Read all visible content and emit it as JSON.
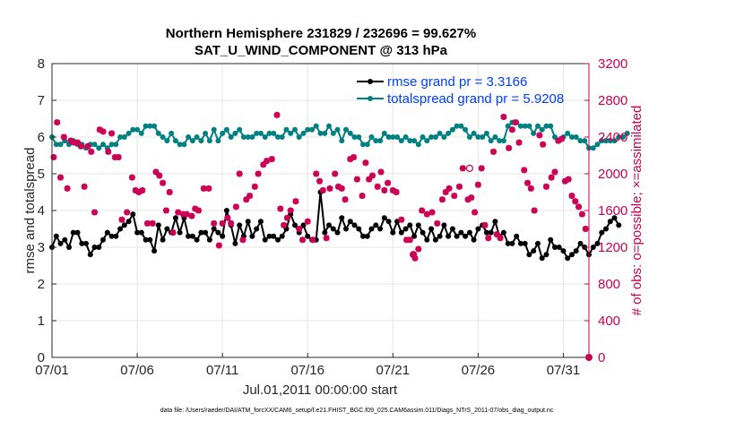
{
  "chart_data": {
    "type": "line",
    "title_line1": "Northern Hemisphere 231829 / 232696 = 99.627%",
    "title_line2": "SAT_U_WIND_COMPONENT @ 313 hPa",
    "xlabel": "Jul.01,2011 00:00:00 start",
    "ylabel_left": "rmse and totalspread",
    "ylabel_right": "# of obs: o=possible; ×=assimilated",
    "footnote": "data file: /Users/raeder/DAI/ATM_forcXX/CAM6_setup/f.e21.FHIST_BGC.f09_025.CAM6assim.011/Diags_NTrS_2011-07/obs_diag_output.nc",
    "xlim": [
      0,
      31.5
    ],
    "x_ticks": [
      0,
      5,
      10,
      15,
      20,
      25,
      30
    ],
    "x_tick_labels": [
      "07/01",
      "07/06",
      "07/11",
      "07/16",
      "07/21",
      "07/26",
      "07/31"
    ],
    "ylim_left": [
      0,
      8
    ],
    "y_ticks_left": [
      "0",
      "1",
      "2",
      "3",
      "4",
      "5",
      "6",
      "7",
      "8"
    ],
    "ylim_right": [
      0,
      3200
    ],
    "y_ticks_right": [
      "0",
      "400",
      "800",
      "1200",
      "1600",
      "2000",
      "2400",
      "2800",
      "3200"
    ],
    "colors": {
      "rmse": "#000000",
      "spread": "#008080",
      "obs": "#cc0055",
      "legend_text": "#0040ff"
    },
    "legend": [
      {
        "name": "rmse grand pr = 3.3166"
      },
      {
        "name": "totalspread grand pr = 5.9208"
      }
    ],
    "series": [
      {
        "name": "rmse",
        "values": [
          3.0,
          3.3,
          3.1,
          3.2,
          3.0,
          3.4,
          3.4,
          3.1,
          3.1,
          2.8,
          3.0,
          3.0,
          3.2,
          3.4,
          3.3,
          3.3,
          3.5,
          3.6,
          3.7,
          3.9,
          3.4,
          3.4,
          3.2,
          3.2,
          2.9,
          3.6,
          3.2,
          3.5,
          3.4,
          3.8,
          3.4,
          3.8,
          3.3,
          3.3,
          3.2,
          3.4,
          3.4,
          3.2,
          3.5,
          3.4,
          3.3,
          4.0,
          3.6,
          3.1,
          3.6,
          3.3,
          3.7,
          3.3,
          3.5,
          3.7,
          3.2,
          3.3,
          3.3,
          3.2,
          3.3,
          3.5,
          3.9,
          3.6,
          3.4,
          3.6,
          3.3,
          3.2,
          3.2,
          4.5,
          3.4,
          3.6,
          3.5,
          3.4,
          3.8,
          3.5,
          3.7,
          3.6,
          3.5,
          3.3,
          3.3,
          3.5,
          3.6,
          3.5,
          3.8,
          3.7,
          3.4,
          3.7,
          3.4,
          3.5,
          3.6,
          3.3,
          3.6,
          3.4,
          3.2,
          3.5,
          3.2,
          3.3,
          3.6,
          3.3,
          3.5,
          3.3,
          3.4,
          3.3,
          3.4,
          3.2,
          3.5,
          3.6,
          3.4,
          3.4,
          3.7,
          3.3,
          3.4,
          3.1,
          3.1,
          3.3,
          3.1,
          3.1,
          2.8,
          2.9,
          3.1,
          2.7,
          2.8,
          3.2,
          3.0,
          3.0,
          2.9,
          2.7,
          2.8,
          2.9,
          3.1,
          3.0,
          2.8,
          3.0,
          3.1,
          3.4,
          3.5,
          3.7,
          3.8,
          3.6
        ],
        "x_step": 0.25
      },
      {
        "name": "totalspread",
        "values": [
          6.0,
          5.8,
          5.8,
          5.9,
          5.8,
          5.9,
          5.8,
          5.8,
          5.7,
          5.8,
          5.8,
          5.7,
          5.8,
          5.7,
          5.8,
          5.8,
          6.0,
          6.0,
          6.1,
          6.2,
          6.2,
          6.1,
          6.3,
          6.3,
          6.3,
          6.1,
          6.0,
          5.9,
          6.1,
          5.9,
          5.8,
          5.8,
          6.0,
          5.9,
          6.0,
          5.9,
          6.1,
          5.9,
          6.2,
          5.9,
          6.1,
          6.2,
          6.0,
          6.1,
          6.2,
          6.0,
          6.0,
          6.0,
          6.1,
          6.1,
          6.0,
          6.1,
          6.1,
          6.0,
          6.0,
          6.2,
          6.1,
          6.2,
          6.0,
          6.1,
          6.2,
          6.2,
          6.3,
          6.1,
          6.1,
          6.3,
          6.1,
          6.2,
          5.9,
          6.2,
          6.1,
          6.0,
          6.0,
          5.8,
          5.8,
          6.0,
          5.9,
          5.9,
          6.1,
          6.0,
          6.0,
          6.0,
          5.9,
          6.0,
          5.9,
          5.9,
          5.8,
          6.0,
          5.9,
          6.0,
          6.0,
          6.1,
          6.0,
          6.1,
          6.2,
          6.3,
          6.3,
          6.2,
          6.0,
          6.1,
          6.0,
          6.0,
          6.1,
          5.9,
          6.0,
          5.9,
          5.9,
          6.3,
          6.4,
          6.4,
          6.3,
          6.3,
          6.3,
          6.1,
          6.3,
          6.2,
          6.3,
          6.3,
          6.0,
          5.9,
          6.0,
          6.1,
          6.0,
          6.0,
          5.9,
          5.9,
          5.7,
          5.7,
          5.8,
          5.9,
          5.9,
          5.9,
          5.9,
          6.0,
          6.0,
          6.1
        ],
        "x_step": 0.25
      },
      {
        "name": "obs_assimilated",
        "points": [
          [
            0.1,
            2180
          ],
          [
            0.3,
            2560
          ],
          [
            0.5,
            1960
          ],
          [
            0.7,
            2400
          ],
          [
            0.9,
            1840
          ],
          [
            1.1,
            2360
          ],
          [
            1.3,
            2340
          ],
          [
            1.5,
            2340
          ],
          [
            1.7,
            2300
          ],
          [
            1.9,
            1860
          ],
          [
            2.1,
            2300
          ],
          [
            2.3,
            2240
          ],
          [
            2.5,
            1580
          ],
          [
            2.8,
            2480
          ],
          [
            3.0,
            2460
          ],
          [
            3.3,
            2240
          ],
          [
            3.5,
            2440
          ],
          [
            3.7,
            2180
          ],
          [
            3.9,
            2180
          ],
          [
            4.1,
            1500
          ],
          [
            4.4,
            1580
          ],
          [
            4.7,
            1960
          ],
          [
            4.9,
            1820
          ],
          [
            5.1,
            1800
          ],
          [
            5.3,
            1820
          ],
          [
            5.6,
            1460
          ],
          [
            5.9,
            1460
          ],
          [
            6.1,
            2020
          ],
          [
            6.3,
            1980
          ],
          [
            6.5,
            1900
          ],
          [
            6.7,
            1600
          ],
          [
            6.9,
            1800
          ],
          [
            7.1,
            1360
          ],
          [
            7.4,
            1580
          ],
          [
            7.7,
            1560
          ],
          [
            7.9,
            1560
          ],
          [
            8.2,
            1540
          ],
          [
            8.4,
            1620
          ],
          [
            8.6,
            1600
          ],
          [
            8.9,
            1840
          ],
          [
            9.2,
            1840
          ],
          [
            9.5,
            1460
          ],
          [
            9.8,
            1220
          ],
          [
            10.0,
            1460
          ],
          [
            10.3,
            1520
          ],
          [
            10.5,
            1460
          ],
          [
            10.8,
            1640
          ],
          [
            11.0,
            2000
          ],
          [
            11.2,
            1280
          ],
          [
            11.4,
            1720
          ],
          [
            11.6,
            1760
          ],
          [
            11.9,
            1860
          ],
          [
            12.1,
            2000
          ],
          [
            12.4,
            2100
          ],
          [
            12.6,
            2140
          ],
          [
            12.9,
            2160
          ],
          [
            13.2,
            2640
          ],
          [
            13.4,
            1620
          ],
          [
            13.6,
            1440
          ],
          [
            13.8,
            1520
          ],
          [
            14.0,
            1600
          ],
          [
            14.3,
            1700
          ],
          [
            14.5,
            1400
          ],
          [
            14.7,
            1280
          ],
          [
            15.0,
            1480
          ],
          [
            15.3,
            1280
          ],
          [
            15.5,
            2000
          ],
          [
            15.7,
            1920
          ],
          [
            15.9,
            1820
          ],
          [
            16.1,
            1300
          ],
          [
            16.3,
            1840
          ],
          [
            16.6,
            2000
          ],
          [
            16.8,
            1860
          ],
          [
            17.0,
            1840
          ],
          [
            17.2,
            1720
          ],
          [
            17.5,
            2160
          ],
          [
            17.7,
            2180
          ],
          [
            17.9,
            1940
          ],
          [
            18.2,
            1760
          ],
          [
            18.4,
            2120
          ],
          [
            18.6,
            1940
          ],
          [
            18.8,
            1980
          ],
          [
            19.1,
            1860
          ],
          [
            19.3,
            2020
          ],
          [
            19.5,
            1820
          ],
          [
            19.7,
            1900
          ],
          [
            20.0,
            1820
          ],
          [
            20.2,
            1800
          ],
          [
            20.5,
            1500
          ],
          [
            20.8,
            1280
          ],
          [
            21.0,
            1280
          ],
          [
            21.2,
            1120
          ],
          [
            21.3,
            1080
          ],
          [
            21.5,
            1180
          ],
          [
            21.7,
            1600
          ],
          [
            22.0,
            1560
          ],
          [
            22.3,
            1580
          ],
          [
            22.6,
            1460
          ],
          [
            22.9,
            1720
          ],
          [
            23.1,
            1800
          ],
          [
            23.3,
            1840
          ],
          [
            23.6,
            1760
          ],
          [
            23.9,
            1860
          ],
          [
            24.1,
            2060
          ],
          [
            24.4,
            1720
          ],
          [
            24.6,
            1740
          ],
          [
            24.8,
            1580
          ],
          [
            25.0,
            1880
          ],
          [
            25.2,
            2060
          ],
          [
            25.4,
            1440
          ],
          [
            25.6,
            1300
          ],
          [
            25.9,
            2240
          ],
          [
            26.1,
            1340
          ],
          [
            26.3,
            1300
          ],
          [
            26.5,
            2620
          ],
          [
            26.8,
            2280
          ],
          [
            27.0,
            2480
          ],
          [
            27.2,
            2560
          ],
          [
            27.4,
            2340
          ],
          [
            27.7,
            2040
          ],
          [
            27.9,
            1900
          ],
          [
            28.1,
            1840
          ],
          [
            28.3,
            1600
          ],
          [
            28.6,
            2420
          ],
          [
            28.8,
            2320
          ],
          [
            29.0,
            1860
          ],
          [
            29.3,
            1960
          ],
          [
            29.5,
            2020
          ],
          [
            29.7,
            2360
          ],
          [
            29.9,
            2380
          ],
          [
            30.1,
            1920
          ],
          [
            30.3,
            1940
          ],
          [
            30.5,
            1760
          ],
          [
            30.7,
            1700
          ],
          [
            30.9,
            1640
          ],
          [
            31.1,
            1560
          ],
          [
            31.3,
            1400
          ]
        ]
      },
      {
        "name": "obs_possible",
        "points": [
          [
            21.2,
            1120
          ],
          [
            24.5,
            2060
          ]
        ]
      }
    ]
  }
}
